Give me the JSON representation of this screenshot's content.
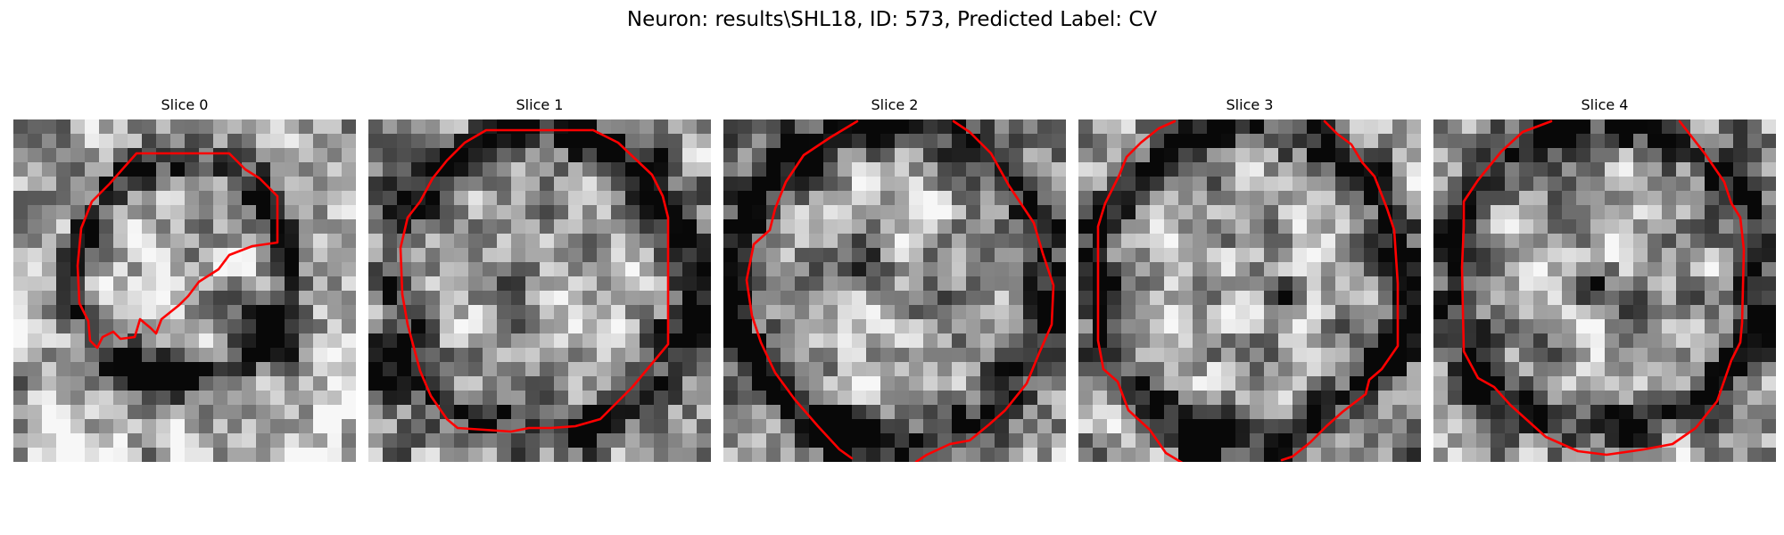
{
  "figure": {
    "title": "Neuron: results\\SHL18, ID: 573, Predicted Label: CV",
    "contour_color": "#ff0000"
  },
  "panels": [
    {
      "title": "Slice 0",
      "icon": "grayscale-micrograph-with-red-contour"
    },
    {
      "title": "Slice 1",
      "icon": "grayscale-micrograph-with-red-contour"
    },
    {
      "title": "Slice 2",
      "icon": "grayscale-micrograph-with-red-contour"
    },
    {
      "title": "Slice 3",
      "icon": "grayscale-micrograph-with-red-contour"
    },
    {
      "title": "Slice 4",
      "icon": "grayscale-micrograph-with-red-contour"
    }
  ]
}
